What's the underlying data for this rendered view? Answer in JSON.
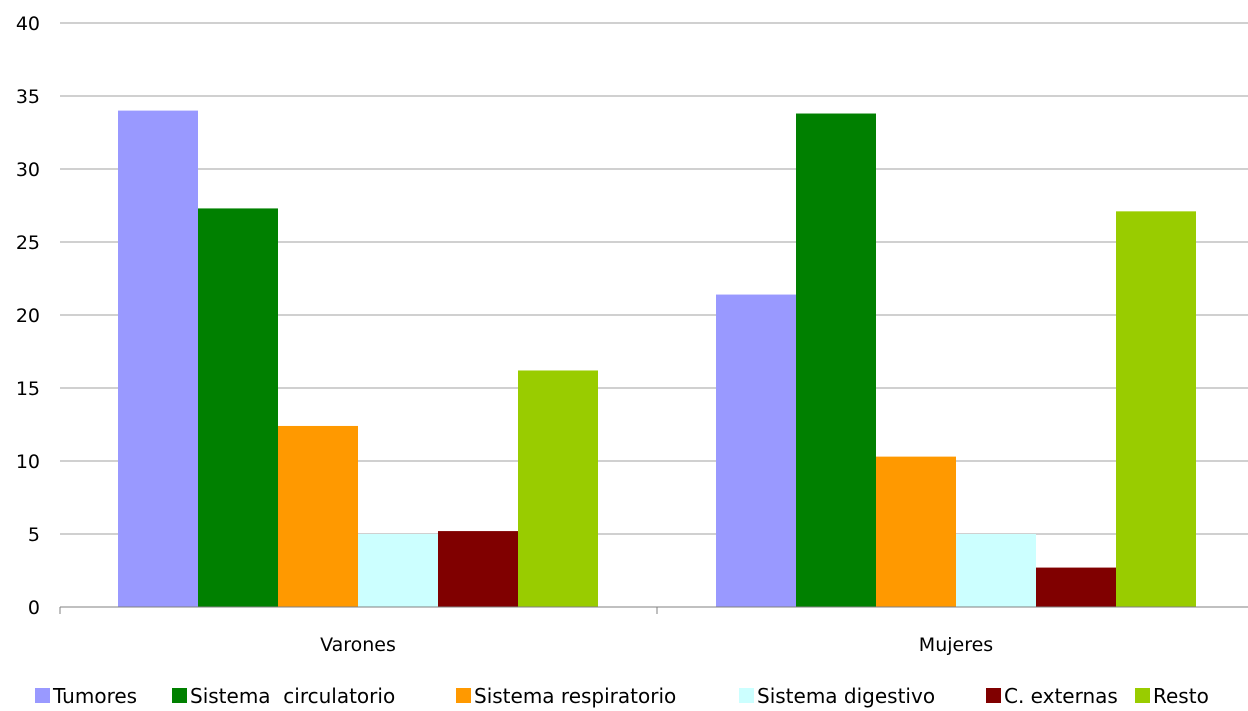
{
  "chart_data": {
    "type": "bar",
    "categories": [
      "Varones",
      "Mujeres"
    ],
    "ylim": [
      0,
      40
    ],
    "yticks": [
      0,
      5,
      10,
      15,
      20,
      25,
      30,
      35,
      40
    ],
    "grid": true,
    "legend_position": "bottom",
    "series": [
      {
        "name": "Tumores",
        "color": "#9999ff",
        "values": [
          34.0,
          21.4
        ]
      },
      {
        "name": "Sistema  circulatorio",
        "color": "#008000",
        "values": [
          27.3,
          33.8
        ]
      },
      {
        "name": "Sistema respiratorio",
        "color": "#ff9900",
        "values": [
          12.4,
          10.3
        ]
      },
      {
        "name": "Sistema digestivo",
        "color": "#ccffff",
        "values": [
          5.0,
          5.0
        ]
      },
      {
        "name": "C. externas",
        "color": "#800000",
        "values": [
          5.2,
          2.7
        ]
      },
      {
        "name": "Resto",
        "color": "#99cc00",
        "values": [
          16.2,
          27.1
        ]
      }
    ]
  }
}
